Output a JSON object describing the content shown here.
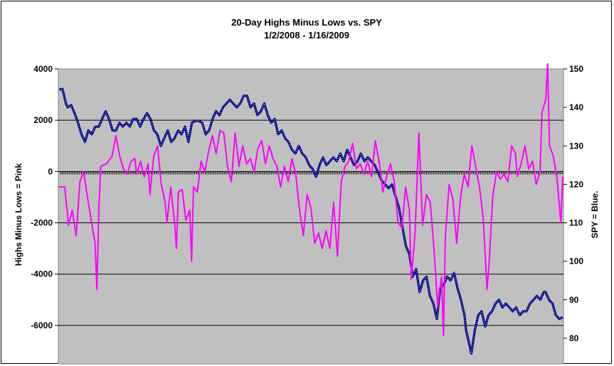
{
  "chart_data": {
    "type": "line",
    "title": "20-Day Highs Minus Lows vs. SPY",
    "subtitle": "1/2/2008 - 1/16/2009",
    "ylabel_left": "Highs Minus Lows = Pink",
    "ylabel_right": "SPY = Blue.",
    "xlabel": "",
    "ylim_left": [
      -7500,
      4000
    ],
    "ylim_right": [
      73.33,
      150
    ],
    "yticks_left": [
      "4000",
      "2000",
      "0",
      "-2000",
      "-4000",
      "-6000"
    ],
    "yticks_left_values": [
      4000,
      2000,
      0,
      -2000,
      -4000,
      -6000
    ],
    "yticks_right": [
      "150",
      "140",
      "130",
      "120",
      "110",
      "100",
      "90",
      "80"
    ],
    "yticks_right_values": [
      150,
      140,
      130,
      120,
      110,
      100,
      90,
      80
    ],
    "grid": "horizontal",
    "plot_background": "#c0c0c0",
    "legend": "none",
    "series": [
      {
        "name": "Highs Minus Lows",
        "color": "#ff00ff",
        "axis": "left",
        "points": [
          [
            0,
            -600
          ],
          [
            3,
            -600
          ],
          [
            5,
            -2100
          ],
          [
            7,
            -1500
          ],
          [
            9,
            -2500
          ],
          [
            11,
            -400
          ],
          [
            13,
            0
          ],
          [
            15,
            -1000
          ],
          [
            17,
            -1900
          ],
          [
            19,
            -2800
          ],
          [
            20,
            -4600
          ],
          [
            21,
            -1500
          ],
          [
            22,
            200
          ],
          [
            25,
            300
          ],
          [
            28,
            600
          ],
          [
            30,
            1400
          ],
          [
            32,
            600
          ],
          [
            34,
            100
          ],
          [
            36,
            -100
          ],
          [
            38,
            400
          ],
          [
            40,
            500
          ],
          [
            41,
            -100
          ],
          [
            43,
            400
          ],
          [
            45,
            -200
          ],
          [
            47,
            300
          ],
          [
            48,
            -900
          ],
          [
            50,
            600
          ],
          [
            52,
            1000
          ],
          [
            54,
            -500
          ],
          [
            56,
            -1200
          ],
          [
            57,
            -2000
          ],
          [
            59,
            -600
          ],
          [
            61,
            -2000
          ],
          [
            62,
            -3000
          ],
          [
            63,
            -800
          ],
          [
            65,
            -700
          ],
          [
            67,
            -1900
          ],
          [
            69,
            -1500
          ],
          [
            70,
            -3500
          ],
          [
            71,
            -600
          ],
          [
            73,
            -800
          ],
          [
            75,
            400
          ],
          [
            77,
            0
          ],
          [
            79,
            800
          ],
          [
            81,
            1400
          ],
          [
            83,
            700
          ],
          [
            85,
            1600
          ],
          [
            87,
            1500
          ],
          [
            89,
            200
          ],
          [
            91,
            -400
          ],
          [
            93,
            1500
          ],
          [
            95,
            200
          ],
          [
            97,
            1000
          ],
          [
            99,
            300
          ],
          [
            101,
            500
          ],
          [
            103,
            0
          ],
          [
            105,
            900
          ],
          [
            107,
            1200
          ],
          [
            109,
            300
          ],
          [
            111,
            1000
          ],
          [
            113,
            500
          ],
          [
            115,
            200
          ],
          [
            117,
            -600
          ],
          [
            119,
            200
          ],
          [
            121,
            -400
          ],
          [
            123,
            500
          ],
          [
            125,
            -100
          ],
          [
            127,
            -1500
          ],
          [
            129,
            -2500
          ],
          [
            131,
            -900
          ],
          [
            133,
            -1400
          ],
          [
            135,
            -2800
          ],
          [
            137,
            -2400
          ],
          [
            139,
            -3000
          ],
          [
            141,
            -2300
          ],
          [
            143,
            -3000
          ],
          [
            145,
            -1200
          ],
          [
            147,
            -3300
          ],
          [
            149,
            -400
          ],
          [
            151,
            200
          ],
          [
            153,
            400
          ],
          [
            155,
            1100
          ],
          [
            157,
            100
          ],
          [
            159,
            300
          ],
          [
            161,
            -100
          ],
          [
            163,
            400
          ],
          [
            165,
            -200
          ],
          [
            167,
            1200
          ],
          [
            169,
            400
          ],
          [
            171,
            -800
          ],
          [
            173,
            -200
          ],
          [
            175,
            300
          ],
          [
            177,
            -400
          ],
          [
            179,
            -2000
          ],
          [
            181,
            -2200
          ],
          [
            183,
            -600
          ],
          [
            185,
            -1500
          ],
          [
            186,
            -4200
          ],
          [
            188,
            -2400
          ],
          [
            190,
            1500
          ],
          [
            192,
            -2100
          ],
          [
            194,
            -900
          ],
          [
            196,
            -1200
          ],
          [
            198,
            -3000
          ],
          [
            200,
            -5300
          ],
          [
            202,
            -4100
          ],
          [
            203,
            -6400
          ],
          [
            204,
            -2500
          ],
          [
            206,
            -500
          ],
          [
            208,
            -1100
          ],
          [
            210,
            -2800
          ],
          [
            212,
            -1000
          ],
          [
            214,
            -100
          ],
          [
            216,
            -600
          ],
          [
            218,
            1000
          ],
          [
            220,
            200
          ],
          [
            222,
            -600
          ],
          [
            224,
            -1800
          ],
          [
            226,
            -4600
          ],
          [
            227,
            -3700
          ],
          [
            229,
            -1000
          ],
          [
            231,
            0
          ],
          [
            233,
            -300
          ],
          [
            235,
            -100
          ],
          [
            237,
            -400
          ],
          [
            239,
            1000
          ],
          [
            241,
            700
          ],
          [
            242,
            -200
          ],
          [
            244,
            300
          ],
          [
            246,
            1000
          ],
          [
            248,
            100
          ],
          [
            250,
            400
          ],
          [
            252,
            -500
          ],
          [
            254,
            0
          ],
          [
            255,
            2300
          ],
          [
            257,
            2800
          ],
          [
            258,
            4200
          ],
          [
            259,
            1000
          ],
          [
            261,
            600
          ],
          [
            263,
            -300
          ],
          [
            265,
            -2000
          ],
          [
            266,
            -200
          ]
        ]
      },
      {
        "name": "SPY",
        "color": "#000080",
        "axis": "right",
        "points": [
          [
            0,
            144.6
          ],
          [
            2,
            144.8
          ],
          [
            4,
            141
          ],
          [
            5,
            140
          ],
          [
            7,
            140.6
          ],
          [
            9,
            138.5
          ],
          [
            11,
            136
          ],
          [
            13,
            133
          ],
          [
            15,
            131
          ],
          [
            17,
            134
          ],
          [
            19,
            133
          ],
          [
            21,
            135
          ],
          [
            23,
            135
          ],
          [
            25,
            137
          ],
          [
            27,
            139
          ],
          [
            29,
            137
          ],
          [
            31,
            134
          ],
          [
            33,
            134
          ],
          [
            35,
            136
          ],
          [
            37,
            135
          ],
          [
            39,
            136
          ],
          [
            41,
            135
          ],
          [
            43,
            137
          ],
          [
            45,
            137
          ],
          [
            47,
            135
          ],
          [
            49,
            137
          ],
          [
            51,
            138.5
          ],
          [
            53,
            137
          ],
          [
            55,
            134
          ],
          [
            57,
            133
          ],
          [
            59,
            130
          ],
          [
            61,
            132
          ],
          [
            63,
            134
          ],
          [
            65,
            131
          ],
          [
            67,
            132
          ],
          [
            69,
            134
          ],
          [
            71,
            133
          ],
          [
            73,
            135
          ],
          [
            75,
            131
          ],
          [
            77,
            136
          ],
          [
            79,
            136.5
          ],
          [
            81,
            136.5
          ],
          [
            83,
            136
          ],
          [
            85,
            133
          ],
          [
            87,
            134
          ],
          [
            89,
            137
          ],
          [
            91,
            139
          ],
          [
            93,
            138
          ],
          [
            95,
            140
          ],
          [
            97,
            141
          ],
          [
            99,
            142
          ],
          [
            101,
            141
          ],
          [
            103,
            140
          ],
          [
            105,
            141
          ],
          [
            107,
            143
          ],
          [
            109,
            143
          ],
          [
            111,
            140
          ],
          [
            113,
            141
          ],
          [
            115,
            138
          ],
          [
            117,
            139
          ],
          [
            119,
            141
          ],
          [
            121,
            138
          ],
          [
            123,
            136
          ],
          [
            125,
            137
          ],
          [
            127,
            133
          ],
          [
            129,
            134
          ],
          [
            131,
            132
          ],
          [
            133,
            131
          ],
          [
            135,
            129
          ],
          [
            137,
            128
          ],
          [
            139,
            130
          ],
          [
            141,
            128
          ],
          [
            143,
            127
          ],
          [
            145,
            125
          ],
          [
            147,
            124
          ],
          [
            149,
            122
          ],
          [
            151,
            125
          ],
          [
            153,
            127
          ],
          [
            155,
            125
          ],
          [
            157,
            126
          ],
          [
            159,
            127
          ],
          [
            161,
            126
          ],
          [
            163,
            128
          ],
          [
            165,
            126
          ],
          [
            167,
            129
          ],
          [
            169,
            127
          ],
          [
            171,
            125
          ],
          [
            173,
            126
          ],
          [
            175,
            128
          ],
          [
            177,
            126
          ],
          [
            179,
            127
          ],
          [
            181,
            126
          ],
          [
            183,
            125
          ],
          [
            185,
            123
          ],
          [
            187,
            121
          ],
          [
            189,
            120
          ],
          [
            191,
            119
          ],
          [
            193,
            120
          ],
          [
            195,
            117
          ],
          [
            197,
            114
          ],
          [
            199,
            109
          ],
          [
            201,
            104
          ],
          [
            203,
            102
          ],
          [
            205,
            96
          ],
          [
            207,
            98
          ],
          [
            209,
            92
          ],
          [
            211,
            95
          ],
          [
            213,
            96
          ],
          [
            215,
            91
          ],
          [
            217,
            89
          ],
          [
            219,
            85
          ],
          [
            221,
            93
          ],
          [
            223,
            94
          ],
          [
            225,
            96
          ],
          [
            227,
            95
          ],
          [
            229,
            97
          ],
          [
            231,
            93
          ],
          [
            233,
            90
          ],
          [
            235,
            86
          ],
          [
            236,
            82
          ],
          [
            238,
            78
          ],
          [
            239,
            76
          ],
          [
            241,
            82
          ],
          [
            243,
            86
          ],
          [
            245,
            87
          ],
          [
            247,
            83
          ],
          [
            249,
            86
          ],
          [
            251,
            87
          ],
          [
            253,
            89
          ],
          [
            255,
            90
          ],
          [
            257,
            88
          ],
          [
            259,
            89
          ],
          [
            261,
            88
          ],
          [
            263,
            87
          ],
          [
            265,
            88
          ],
          [
            267,
            86
          ],
          [
            269,
            87
          ],
          [
            271,
            87
          ],
          [
            273,
            89
          ],
          [
            275,
            90
          ],
          [
            277,
            91
          ],
          [
            279,
            90
          ],
          [
            281,
            92
          ],
          [
            282,
            92
          ],
          [
            284,
            90
          ],
          [
            286,
            89
          ],
          [
            288,
            86
          ],
          [
            290,
            85
          ],
          [
            292,
            85.5
          ]
        ]
      }
    ]
  }
}
